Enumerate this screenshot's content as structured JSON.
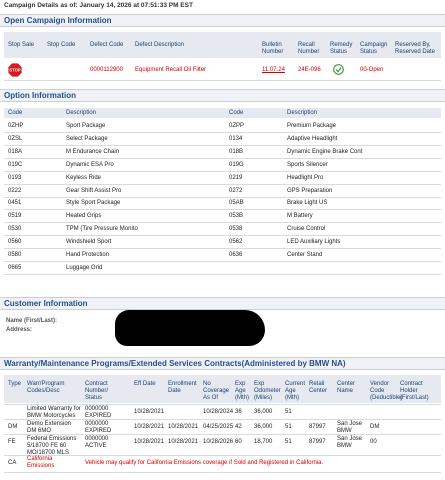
{
  "campaign_details": {
    "label": "Campaign Details as of:",
    "value": "January 14, 2026 at 07:51:33 PM EST"
  },
  "open_campaign": {
    "title": "Open Campaign Information",
    "columns": [
      "Stop Sale",
      "Stop Code",
      "Defect Code",
      "Defect Description",
      "Bulletin Number",
      "Recall Number",
      "Remedy Status",
      "Campaign Status",
      "Reserved By, Reserved Date"
    ],
    "rows": [
      {
        "stop_sale": "STOP",
        "defect_code": "0000112900",
        "defect_description": "Equipment Recall Oil Filter",
        "bulletin_number": "11.07.24",
        "recall_number": "24E-096",
        "campaign_status": "00-Open"
      }
    ]
  },
  "options": {
    "title": "Option Information",
    "columns": [
      "Code",
      "Description",
      "Code",
      "Description"
    ],
    "left": [
      [
        "0ZHP",
        "Sport Package"
      ],
      [
        "0ZSL",
        "Select Package"
      ],
      [
        "018A",
        "M Endurance Chain"
      ],
      [
        "019C",
        "Dynamic ESA Pro"
      ],
      [
        "0193",
        "Keyless Ride"
      ],
      [
        "0222",
        "Gear Shift Assist Pro"
      ],
      [
        "0451",
        "Style Sport Package"
      ],
      [
        "0519",
        "Heated Grips"
      ],
      [
        "0530",
        "TPM (Tire Pressure Monito"
      ],
      [
        "0560",
        "Windshield Sport"
      ],
      [
        "0580",
        "Hand Protection"
      ],
      [
        "0665",
        "Luggage Grid"
      ]
    ],
    "right": [
      [
        "0ZPP",
        "Premium Package"
      ],
      [
        "0134",
        "Adaptive Headlight"
      ],
      [
        "018B",
        "Dynamic Engine Brake Cont"
      ],
      [
        "019G",
        "Sports Silencer"
      ],
      [
        "0219",
        "Headlight Pro"
      ],
      [
        "0272",
        "GPS Preparation"
      ],
      [
        "05AB",
        "Brake Light US"
      ],
      [
        "053B",
        "M Battery"
      ],
      [
        "0538",
        "Cruise Control"
      ],
      [
        "0562",
        "LED Auxiliary Lights"
      ],
      [
        "0636",
        "Center Stand"
      ]
    ]
  },
  "customer": {
    "title": "Customer Information",
    "name_label": "Name (First/Last):",
    "address_label": "Address:"
  },
  "warranty": {
    "title": "Warranty/Maintenance Programs/Extended Services Contracts(Administered by BMW NA)",
    "columns": [
      "Type",
      "Warr/Program Codes/Desc",
      "Contract Number/ Status",
      "Eff Date",
      "Enrollment Date",
      "No Coverage As Of",
      "Exp Age (Mth)",
      "Exp Odometer (Miles)",
      "Current Age (Mth)",
      "Retail Center",
      "Center Name",
      "Vendor Code (Deductible)",
      "Contract Holder (First/Last)"
    ],
    "rows": [
      [
        null,
        "Limited Warranty for BMW Motorcycles",
        "0000000 EXPIRED",
        "10/28/2021",
        null,
        "10/28/2024",
        "36",
        "36,000",
        "51",
        null,
        null,
        null,
        null
      ],
      [
        "DM",
        "Demo Extension DM 6MO",
        "0000000 EXPIRED",
        "10/28/2021",
        "10/28/2021",
        "04/25/2025",
        "42",
        "36,000",
        "51",
        "87997",
        "San Jose BMW",
        "DM",
        null
      ],
      [
        "FE",
        "Federal Emissions 5/18700 FE 60 MO/18700 MLS",
        "0000000 ACTIVE",
        "10/28/2021",
        "10/28/2021",
        "10/28/2026",
        "60",
        "18,700",
        "51",
        "87997",
        "San Jose BMW",
        "00",
        null
      ]
    ],
    "note": {
      "type": "CA",
      "program": "California Emissions",
      "text": "Vehicle may qualify for California Emissions coverage if Sold and Registered in California."
    }
  }
}
